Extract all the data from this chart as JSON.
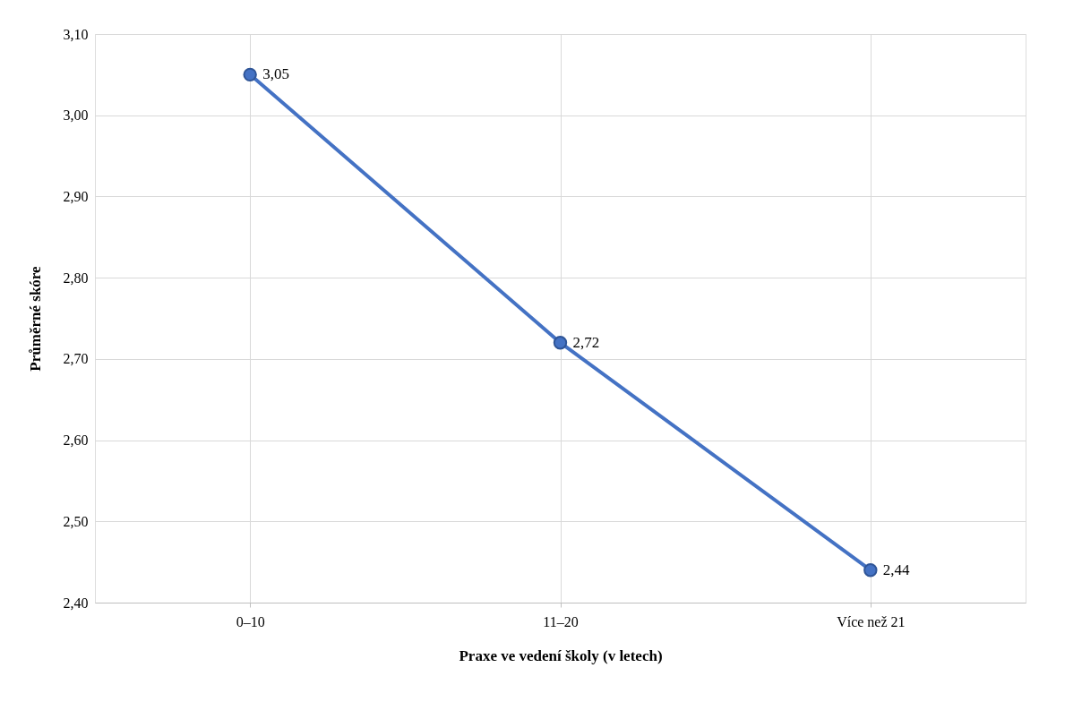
{
  "chart_data": {
    "type": "line",
    "xlabel": "Praxe ve vedení školy (v letech)",
    "ylabel": "Průměrné skóre",
    "categories": [
      "0–10",
      "11–20",
      "Více než 21"
    ],
    "series": [
      {
        "color": "#4472c4",
        "values": [
          3.05,
          2.72,
          2.44
        ],
        "value_labels": [
          "3,05",
          "2,72",
          "2,44"
        ]
      }
    ],
    "ylim": [
      2.4,
      3.1
    ],
    "yticks": [
      {
        "value": 2.4,
        "label": "2,40"
      },
      {
        "value": 2.5,
        "label": "2,50"
      },
      {
        "value": 2.6,
        "label": "2,60"
      },
      {
        "value": 2.7,
        "label": "2,70"
      },
      {
        "value": 2.8,
        "label": "2,80"
      },
      {
        "value": 2.9,
        "label": "2,90"
      },
      {
        "value": 3.0,
        "label": "3,00"
      },
      {
        "value": 3.1,
        "label": "3,10"
      }
    ],
    "grid": true,
    "marker": "circle",
    "line_style": "solid"
  }
}
